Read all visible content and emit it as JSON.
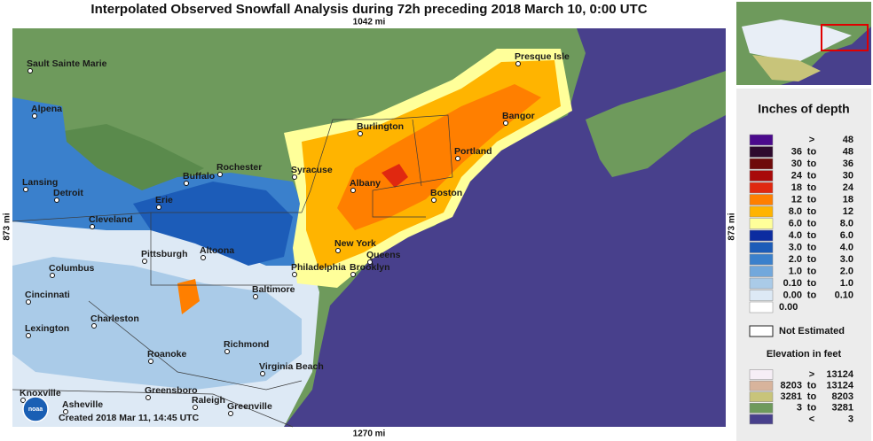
{
  "header": {
    "title": "Interpolated Observed Snowfall Analysis during 72h preceding 2018 March 10, 0:00 UTC"
  },
  "scale": {
    "top": "1042 mi",
    "left": "873 mi",
    "right": "873 mi",
    "bottom": "1270 mi"
  },
  "map": {
    "cities": [
      "Sault Sainte Marie",
      "Presque Isle",
      "Alpena",
      "Burlington",
      "Bangor",
      "Rochester",
      "Syracuse",
      "Portland",
      "Lansing",
      "Buffalo",
      "Albany",
      "Detroit",
      "Erie",
      "Boston",
      "Cleveland",
      "New York",
      "Pittsburgh",
      "Altoona",
      "Queens",
      "Columbus",
      "Philadelphia",
      "Brooklyn",
      "Baltimore",
      "Cincinnati",
      "Charleston",
      "Lexington",
      "Richmond",
      "Roanoke",
      "Virginia Beach",
      "Knoxville",
      "Greensboro",
      "Asheville",
      "Raleigh",
      "Greenville"
    ],
    "logo": "noaa",
    "created": "Created 2018 Mar 11, 14:45 UTC"
  },
  "legend": {
    "title": "Inches of depth",
    "rows": [
      {
        "sep": ">",
        "high": "48",
        "color": "#4b0a8c"
      },
      {
        "low": "36",
        "sep": "to",
        "high": "48",
        "color": "#2e0a2e"
      },
      {
        "low": "30",
        "sep": "to",
        "high": "36",
        "color": "#6e0a0a"
      },
      {
        "low": "24",
        "sep": "to",
        "high": "30",
        "color": "#a80a0a"
      },
      {
        "low": "18",
        "sep": "to",
        "high": "24",
        "color": "#e02810"
      },
      {
        "low": "12",
        "sep": "to",
        "high": "18",
        "color": "#ff7f00"
      },
      {
        "low": "8.0",
        "sep": "to",
        "high": "12",
        "color": "#ffb400"
      },
      {
        "low": "6.0",
        "sep": "to",
        "high": "8.0",
        "color": "#ffff9a"
      },
      {
        "low": "4.0",
        "sep": "to",
        "high": "6.0",
        "color": "#0c2ca0"
      },
      {
        "low": "3.0",
        "sep": "to",
        "high": "4.0",
        "color": "#1c5cb8"
      },
      {
        "low": "2.0",
        "sep": "to",
        "high": "3.0",
        "color": "#3a80cc"
      },
      {
        "low": "1.0",
        "sep": "to",
        "high": "2.0",
        "color": "#72a8dc"
      },
      {
        "low": "0.10",
        "sep": "to",
        "high": "1.0",
        "color": "#aacbe8"
      },
      {
        "low": "0.00",
        "sep": "to",
        "high": "0.10",
        "color": "#dde9f5"
      },
      {
        "low": "0.00",
        "color": "#ffffff"
      }
    ],
    "not_estimated": "Not Estimated",
    "elevation_title": "Elevation in feet",
    "elevation_rows": [
      {
        "sep": ">",
        "high": "13124",
        "color": "#f6eef6"
      },
      {
        "low": "8203",
        "sep": "to",
        "high": "13124",
        "color": "#d8b49c"
      },
      {
        "low": "3281",
        "sep": "to",
        "high": "8203",
        "color": "#c8c47a"
      },
      {
        "low": "3",
        "sep": "to",
        "high": "3281",
        "color": "#6e9a5c"
      },
      {
        "sep": "<",
        "high": "3",
        "color": "#48408c"
      }
    ]
  }
}
